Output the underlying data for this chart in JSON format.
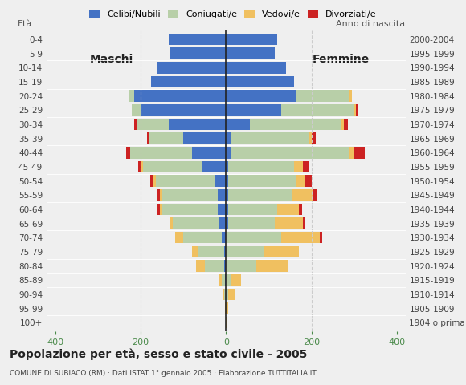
{
  "age_groups": [
    "100+",
    "95-99",
    "90-94",
    "85-89",
    "80-84",
    "75-79",
    "70-74",
    "65-69",
    "60-64",
    "55-59",
    "50-54",
    "45-49",
    "40-44",
    "35-39",
    "30-34",
    "25-29",
    "20-24",
    "15-19",
    "10-14",
    "5-9",
    "0-4"
  ],
  "birth_years": [
    "1904 o prima",
    "1905-1909",
    "1910-1914",
    "1915-1919",
    "1920-1924",
    "1925-1929",
    "1930-1934",
    "1935-1939",
    "1940-1944",
    "1945-1949",
    "1950-1954",
    "1955-1959",
    "1960-1964",
    "1965-1969",
    "1970-1974",
    "1975-1979",
    "1980-1984",
    "1985-1989",
    "1990-1994",
    "1995-1999",
    "2000-2004"
  ],
  "colors": {
    "celibe": "#4472c4",
    "coniugato": "#b8cfa8",
    "vedovo": "#f0c060",
    "divorziato": "#cc2222"
  },
  "males": {
    "celibe": [
      0,
      0,
      0,
      2,
      5,
      5,
      10,
      15,
      20,
      20,
      25,
      55,
      80,
      100,
      135,
      200,
      215,
      175,
      160,
      130,
      135
    ],
    "coniugato": [
      0,
      1,
      4,
      8,
      45,
      60,
      90,
      110,
      130,
      130,
      140,
      140,
      145,
      80,
      75,
      20,
      12,
      0,
      0,
      0,
      0
    ],
    "vedovo": [
      0,
      1,
      3,
      5,
      20,
      15,
      20,
      5,
      5,
      5,
      5,
      3,
      0,
      0,
      0,
      0,
      0,
      0,
      0,
      0,
      0
    ],
    "divorziato": [
      0,
      0,
      0,
      0,
      0,
      0,
      0,
      3,
      5,
      8,
      8,
      8,
      8,
      5,
      5,
      0,
      0,
      0,
      0,
      0,
      0
    ]
  },
  "females": {
    "celibe": [
      0,
      0,
      0,
      0,
      0,
      0,
      0,
      5,
      5,
      5,
      5,
      5,
      10,
      10,
      55,
      130,
      165,
      160,
      140,
      115,
      120
    ],
    "coniugata": [
      0,
      0,
      5,
      10,
      70,
      90,
      130,
      110,
      115,
      150,
      160,
      155,
      280,
      185,
      215,
      170,
      125,
      0,
      0,
      0,
      0
    ],
    "vedova": [
      2,
      5,
      15,
      25,
      75,
      80,
      90,
      65,
      50,
      50,
      20,
      20,
      10,
      5,
      5,
      5,
      5,
      0,
      0,
      0,
      0
    ],
    "divorziata": [
      0,
      0,
      0,
      0,
      0,
      0,
      5,
      5,
      8,
      8,
      15,
      15,
      25,
      10,
      10,
      5,
      0,
      0,
      0,
      0,
      0
    ]
  },
  "xlim": 420,
  "xticks": [
    -400,
    -200,
    0,
    200,
    400
  ],
  "xticklabels": [
    "400",
    "200",
    "0",
    "200",
    "400"
  ],
  "title": "Popolazione per età, sesso e stato civile - 2005",
  "subtitle": "COMUNE DI SUBIACO (RM) · Dati ISTAT 1° gennaio 2005 · Elaborazione TUTTITALIA.IT",
  "legend_labels": [
    "Celibi/Nubili",
    "Coniugati/e",
    "Vedovi/e",
    "Divorziati/e"
  ],
  "legend_colors": [
    "#4472c4",
    "#b8cfa8",
    "#f0c060",
    "#cc2222"
  ],
  "ylabel_left": "Età",
  "ylabel_right": "Anno di nascita",
  "label_maschi": "Maschi",
  "label_femmine": "Femmine",
  "bg_color": "#efefef",
  "tick_color": "#4a8a4a",
  "dashed_color": "#cccccc"
}
